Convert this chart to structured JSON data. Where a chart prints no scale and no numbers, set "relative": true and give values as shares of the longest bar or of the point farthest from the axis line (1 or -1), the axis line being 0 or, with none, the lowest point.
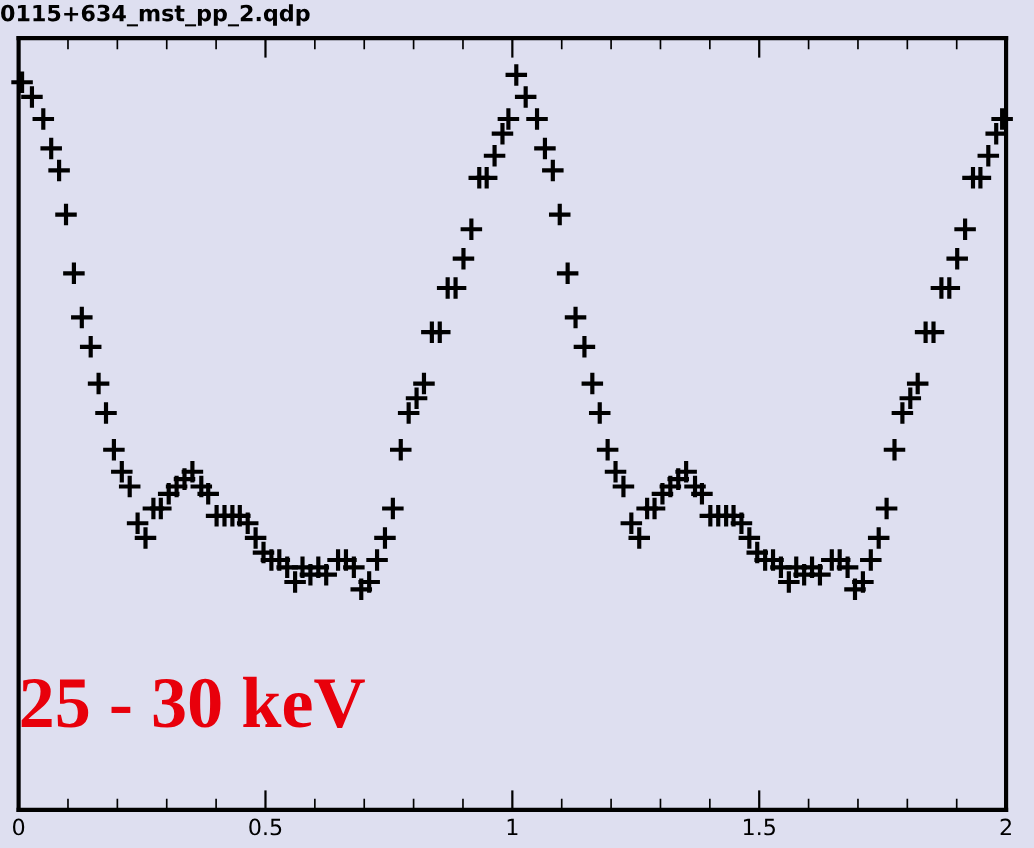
{
  "chart_data": {
    "type": "scatter",
    "relative": true,
    "title": "0115+634_mst_pp_2.qdp",
    "annotations": [
      "25 - 30 keV"
    ],
    "xlim": [
      0,
      2
    ],
    "xticks": [
      0,
      0.5,
      1,
      1.5,
      2
    ],
    "tick_labels": "x",
    "marker": "cross",
    "grid": false,
    "legend": false,
    "series": [
      {
        "color": "#000000",
        "x": [
          0.007,
          0.027,
          0.05,
          0.066,
          0.082,
          0.096,
          0.112,
          0.128,
          0.146,
          0.162,
          0.177,
          0.193,
          0.209,
          0.225,
          0.241,
          0.257,
          0.273,
          0.288,
          0.304,
          0.32,
          0.336,
          0.352,
          0.37,
          0.384,
          0.401,
          0.417,
          0.433,
          0.448,
          0.464,
          0.48,
          0.496,
          0.512,
          0.528,
          0.544,
          0.56,
          0.575,
          0.591,
          0.607,
          0.623,
          0.647,
          0.663,
          0.679,
          0.694,
          0.71,
          0.726,
          0.742,
          0.758,
          0.774,
          0.79,
          0.806,
          0.821,
          0.837,
          0.853,
          0.869,
          0.885,
          0.901,
          0.917,
          0.933,
          0.948,
          0.964,
          0.98,
          0.992,
          1.008,
          1.027,
          1.05,
          1.066,
          1.082,
          1.096,
          1.112,
          1.128,
          1.146,
          1.162,
          1.177,
          1.193,
          1.209,
          1.225,
          1.241,
          1.257,
          1.273,
          1.288,
          1.304,
          1.32,
          1.336,
          1.352,
          1.37,
          1.384,
          1.401,
          1.417,
          1.433,
          1.448,
          1.464,
          1.48,
          1.496,
          1.512,
          1.528,
          1.544,
          1.56,
          1.575,
          1.591,
          1.607,
          1.623,
          1.647,
          1.663,
          1.679,
          1.694,
          1.71,
          1.726,
          1.742,
          1.758,
          1.774,
          1.79,
          1.806,
          1.821,
          1.837,
          1.853,
          1.869,
          1.885,
          1.901,
          1.917,
          1.933,
          1.948,
          1.964,
          1.98,
          1.992
        ],
        "values": [
          0.99,
          0.97,
          0.94,
          0.9,
          0.87,
          0.81,
          0.73,
          0.67,
          0.63,
          0.58,
          0.54,
          0.49,
          0.46,
          0.44,
          0.39,
          0.37,
          0.41,
          0.41,
          0.43,
          0.44,
          0.45,
          0.46,
          0.44,
          0.43,
          0.4,
          0.4,
          0.4,
          0.4,
          0.39,
          0.37,
          0.35,
          0.34,
          0.34,
          0.33,
          0.31,
          0.33,
          0.32,
          0.33,
          0.32,
          0.34,
          0.34,
          0.33,
          0.3,
          0.31,
          0.34,
          0.37,
          0.41,
          0.49,
          0.54,
          0.56,
          0.58,
          0.65,
          0.65,
          0.71,
          0.71,
          0.75,
          0.79,
          0.86,
          0.86,
          0.89,
          0.92,
          0.94,
          1.0,
          0.97,
          0.94,
          0.9,
          0.87,
          0.81,
          0.73,
          0.67,
          0.63,
          0.58,
          0.54,
          0.49,
          0.46,
          0.44,
          0.39,
          0.37,
          0.41,
          0.41,
          0.43,
          0.44,
          0.45,
          0.46,
          0.44,
          0.43,
          0.4,
          0.4,
          0.4,
          0.4,
          0.39,
          0.37,
          0.35,
          0.34,
          0.34,
          0.33,
          0.31,
          0.33,
          0.32,
          0.33,
          0.32,
          0.34,
          0.34,
          0.33,
          0.3,
          0.31,
          0.34,
          0.37,
          0.41,
          0.49,
          0.54,
          0.56,
          0.58,
          0.65,
          0.65,
          0.71,
          0.71,
          0.75,
          0.79,
          0.86,
          0.86,
          0.89,
          0.92,
          0.94
        ]
      }
    ]
  }
}
